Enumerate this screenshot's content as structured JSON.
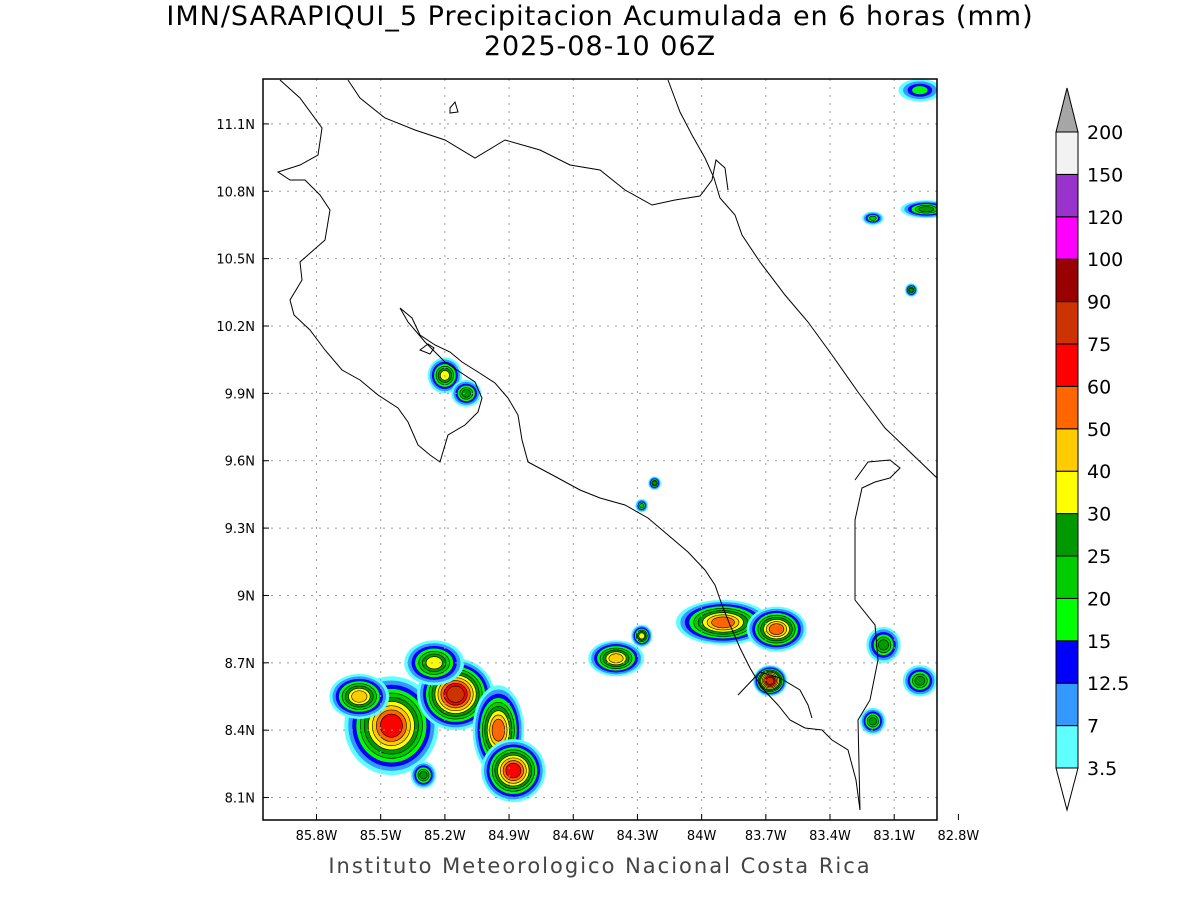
{
  "title": {
    "line1": "IMN/SARAPIQUI_5 Precipitacion Acumulada en 6 horas (mm)",
    "line2": "2025-08-10 06Z"
  },
  "footer": "Instituto Meteorologico Nacional Costa Rica",
  "map": {
    "lon_range": [
      -86.05,
      -82.9
    ],
    "lat_range": [
      8.0,
      11.3
    ],
    "lon_ticks": [
      {
        "value": -85.8,
        "label": "85.8W"
      },
      {
        "value": -85.5,
        "label": "85.5W"
      },
      {
        "value": -85.2,
        "label": "85.2W"
      },
      {
        "value": -84.9,
        "label": "84.9W"
      },
      {
        "value": -84.6,
        "label": "84.6W"
      },
      {
        "value": -84.3,
        "label": "84.3W"
      },
      {
        "value": -84.0,
        "label": "84W"
      },
      {
        "value": -83.7,
        "label": "83.7W"
      },
      {
        "value": -83.4,
        "label": "83.4W"
      },
      {
        "value": -83.1,
        "label": "83.1W"
      },
      {
        "value": -82.8,
        "label": "82.8W"
      }
    ],
    "lat_ticks": [
      {
        "value": 8.1,
        "label": "8.1N"
      },
      {
        "value": 8.4,
        "label": "8.4N"
      },
      {
        "value": 8.7,
        "label": "8.7N"
      },
      {
        "value": 9.0,
        "label": "9N"
      },
      {
        "value": 9.3,
        "label": "9.3N"
      },
      {
        "value": 9.6,
        "label": "9.6N"
      },
      {
        "value": 9.9,
        "label": "9.9N"
      },
      {
        "value": 10.2,
        "label": "10.2N"
      },
      {
        "value": 10.5,
        "label": "10.5N"
      },
      {
        "value": 10.8,
        "label": "10.8N"
      },
      {
        "value": 11.1,
        "label": "11.1N"
      }
    ],
    "precip_cells": [
      {
        "lon": -85.45,
        "lat": 8.42,
        "rx": 0.22,
        "ry": 0.22,
        "peak": 60
      },
      {
        "lon": -85.6,
        "lat": 8.55,
        "rx": 0.14,
        "ry": 0.1,
        "peak": 40
      },
      {
        "lon": -85.15,
        "lat": 8.56,
        "rx": 0.18,
        "ry": 0.16,
        "peak": 75
      },
      {
        "lon": -85.25,
        "lat": 8.7,
        "rx": 0.14,
        "ry": 0.1,
        "peak": 30
      },
      {
        "lon": -84.95,
        "lat": 8.4,
        "rx": 0.12,
        "ry": 0.2,
        "peak": 50
      },
      {
        "lon": -84.88,
        "lat": 8.22,
        "rx": 0.15,
        "ry": 0.14,
        "peak": 60
      },
      {
        "lon": -85.3,
        "lat": 8.2,
        "rx": 0.06,
        "ry": 0.06,
        "peak": 25
      },
      {
        "lon": -84.4,
        "lat": 8.72,
        "rx": 0.13,
        "ry": 0.08,
        "peak": 40
      },
      {
        "lon": -84.28,
        "lat": 8.82,
        "rx": 0.05,
        "ry": 0.05,
        "peak": 30
      },
      {
        "lon": -83.9,
        "lat": 8.88,
        "rx": 0.22,
        "ry": 0.1,
        "peak": 50
      },
      {
        "lon": -83.65,
        "lat": 8.85,
        "rx": 0.14,
        "ry": 0.1,
        "peak": 50
      },
      {
        "lon": -83.68,
        "lat": 8.62,
        "rx": 0.08,
        "ry": 0.07,
        "peak": 75
      },
      {
        "lon": -83.15,
        "lat": 8.78,
        "rx": 0.08,
        "ry": 0.08,
        "peak": 25
      },
      {
        "lon": -82.98,
        "lat": 8.62,
        "rx": 0.08,
        "ry": 0.07,
        "peak": 25
      },
      {
        "lon": -83.2,
        "lat": 8.44,
        "rx": 0.06,
        "ry": 0.06,
        "peak": 25
      },
      {
        "lon": -85.2,
        "lat": 9.98,
        "rx": 0.08,
        "ry": 0.08,
        "peak": 30
      },
      {
        "lon": -85.1,
        "lat": 9.9,
        "rx": 0.07,
        "ry": 0.06,
        "peak": 25
      },
      {
        "lon": -84.22,
        "lat": 9.5,
        "rx": 0.03,
        "ry": 0.03,
        "peak": 25
      },
      {
        "lon": -84.28,
        "lat": 9.4,
        "rx": 0.03,
        "ry": 0.03,
        "peak": 20
      },
      {
        "lon": -82.95,
        "lat": 10.72,
        "rx": 0.12,
        "ry": 0.04,
        "peak": 25
      },
      {
        "lon": -83.2,
        "lat": 10.68,
        "rx": 0.05,
        "ry": 0.03,
        "peak": 20
      },
      {
        "lon": -83.02,
        "lat": 10.36,
        "rx": 0.03,
        "ry": 0.03,
        "peak": 25
      },
      {
        "lon": -82.98,
        "lat": 11.25,
        "rx": 0.1,
        "ry": 0.05,
        "peak": 15
      }
    ]
  },
  "colorbar": {
    "levels": [
      "3.5",
      "7",
      "12.5",
      "15",
      "20",
      "25",
      "30",
      "40",
      "50",
      "60",
      "75",
      "90",
      "100",
      "120",
      "150",
      "200"
    ],
    "colors": [
      "#5fffff",
      "#3399ff",
      "#0000ff",
      "#00ff00",
      "#00cc00",
      "#009900",
      "#ffff00",
      "#ffcc00",
      "#ff6600",
      "#ff0000",
      "#cc3300",
      "#990000",
      "#ff00ff",
      "#9933cc",
      "#f2f2f2"
    ],
    "top_arrow_color": "#a6a6a6",
    "bottom_arrow_color": "#ffffff"
  }
}
